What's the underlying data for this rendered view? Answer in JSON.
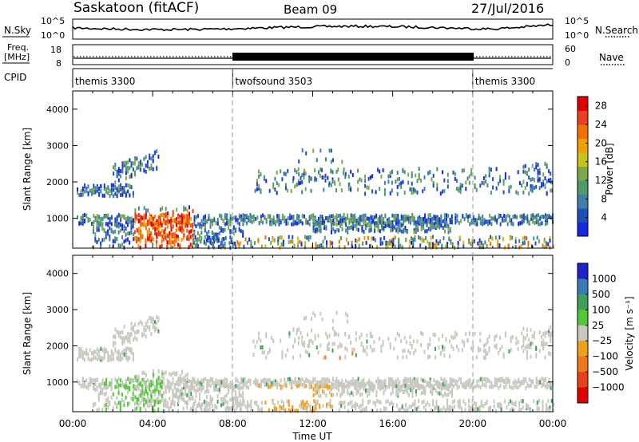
{
  "header": {
    "radar": "Saskatoon (fitACF)",
    "beam": "Beam 09",
    "date": "27/Jul/2016"
  },
  "strips": {
    "nsky_label": "N.Sky",
    "nsky_ticks": [
      "10^5",
      "10^0"
    ],
    "nsearch_label": "N.Search",
    "freq_label_1": "Freq.",
    "freq_label_2": "[MHz]",
    "freq_ticks": [
      "18",
      "8"
    ],
    "nave_label": "Nave",
    "nave_ticks": [
      "60",
      "0"
    ],
    "cpid_label": "CPID",
    "cpid_segments": [
      {
        "name": "themis 3300",
        "start_h": 0,
        "end_h": 8
      },
      {
        "name": "twofsound 3503",
        "start_h": 8,
        "end_h": 20
      },
      {
        "name": "themis 3300",
        "start_h": 20,
        "end_h": 24
      }
    ]
  },
  "chart_data": [
    {
      "type": "heatmap",
      "title": "",
      "ylabel": "Slant Range [km]",
      "xlabel": "",
      "yticks": [
        "1000",
        "2000",
        "3000",
        "4000"
      ],
      "ylim": [
        180,
        4500
      ],
      "xlim_hours": [
        0,
        24
      ],
      "colorbar_label": "Power [dB]",
      "colorbar_ticks": [
        "4",
        "8",
        "12",
        "16",
        "20",
        "24",
        "28"
      ],
      "colorbar_range": [
        0,
        30
      ],
      "colors": [
        "#1628e0",
        "#1f4fb8",
        "#3f7fa8",
        "#4e9a6c",
        "#7aa84a",
        "#c8c21a",
        "#f0a000",
        "#f07000",
        "#e84020",
        "#e00000"
      ]
    },
    {
      "type": "heatmap",
      "title": "",
      "ylabel": "Slant Range [km]",
      "xlabel": "Time UT",
      "yticks": [
        "1000",
        "2000",
        "3000",
        "4000"
      ],
      "xticks": [
        "00:00",
        "04:00",
        "08:00",
        "12:00",
        "16:00",
        "20:00",
        "00:00"
      ],
      "ylim": [
        180,
        4500
      ],
      "xlim_hours": [
        0,
        24
      ],
      "colorbar_label": "Velocity [m s⁻¹]",
      "colorbar_ticks": [
        "1000",
        "500",
        "100",
        "25",
        "−25",
        "−100",
        "−500",
        "−1000"
      ],
      "colors": [
        "#2020c8",
        "#3c7ab4",
        "#3ea05a",
        "#52c838",
        "#c8c8c0",
        "#f0a018",
        "#f07818",
        "#e84018",
        "#e00000"
      ]
    }
  ]
}
